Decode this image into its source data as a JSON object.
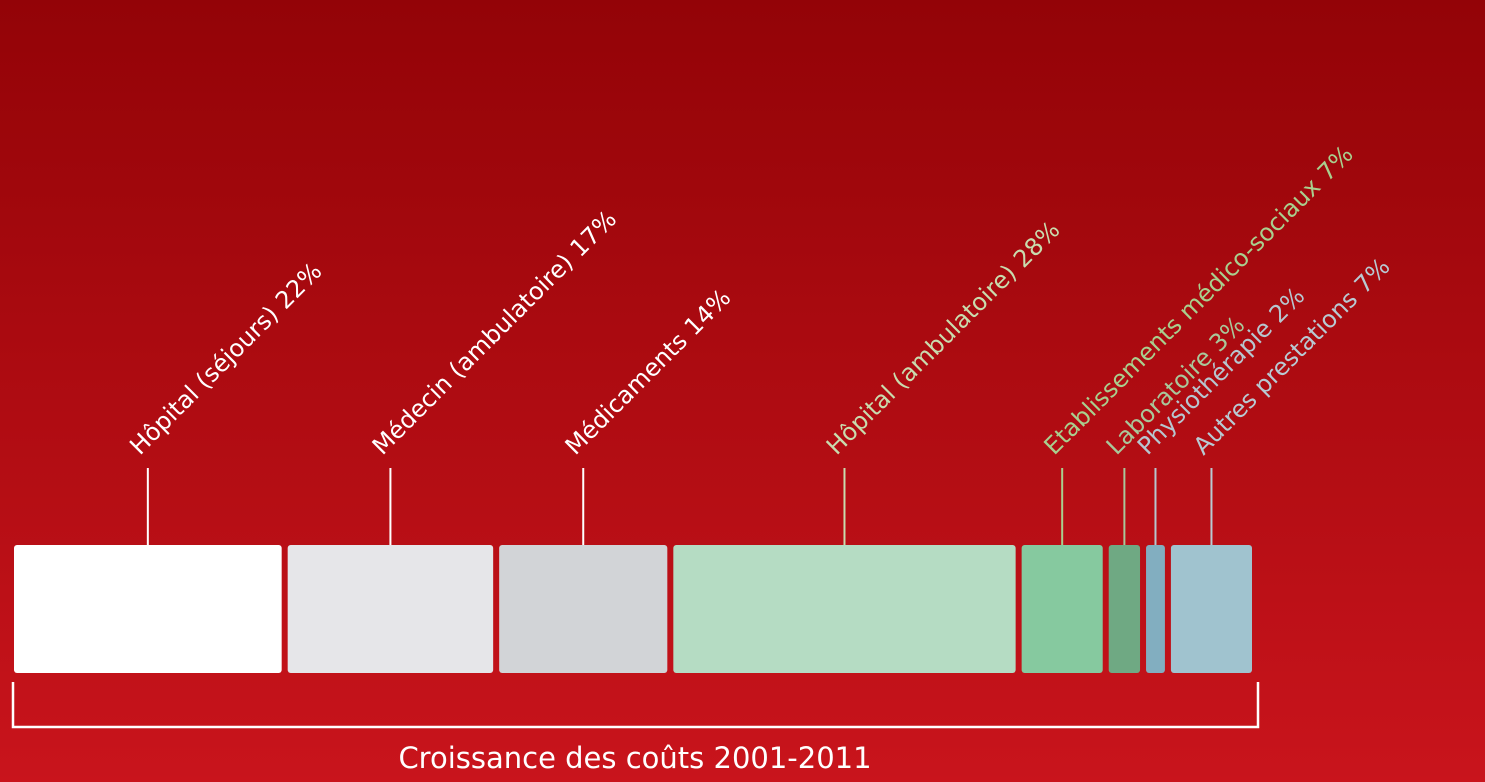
{
  "chart_data": {
    "type": "stacked-bar",
    "title": "Croissance des coûts 2001-2011",
    "categories": [
      "Hôpital (séjours)",
      "Médecin (ambulatoire)",
      "Médicaments",
      "Hôpital (ambulatoire)",
      "Etablissements médico-sociaux",
      "Laboratoire",
      "Physiothérapie",
      "Autres prestations"
    ],
    "values": [
      22,
      17,
      14,
      28,
      7,
      3,
      2,
      7
    ],
    "value_labels": [
      "22%",
      "17%",
      "14%",
      "28%",
      "7%",
      "3%",
      "2%",
      "7%"
    ],
    "colors": [
      "#ffffff",
      "#e6e6e9",
      "#d2d4d7",
      "#b5dcc3",
      "#86c99f",
      "#6fa983",
      "#82aec0",
      "#a0c3cf"
    ],
    "label_colors": [
      "#ffffff",
      "#ffffff",
      "#ffffff",
      "#c9dcae",
      "#a9cf8e",
      "#a9c79a",
      "#b6c6cf",
      "#b8cad3"
    ],
    "xlim": [
      0,
      100
    ]
  }
}
